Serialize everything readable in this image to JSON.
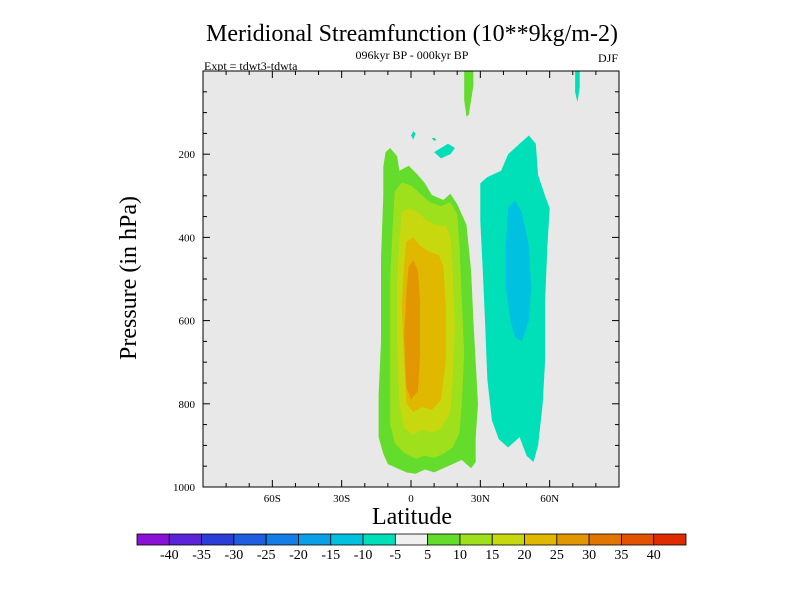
{
  "chart_data": {
    "type": "heatmap",
    "title": "Meridional Streamfunction (10**9kg/m-2)",
    "subtitle_center": "096kyr BP - 000kyr BP",
    "subtitle_left": "Expt = tdwt3-tdwta",
    "subtitle_right": "DJF",
    "xlabel": "Latitude",
    "ylabel": "Pressure (in hPa)",
    "x_range": [
      -90,
      90
    ],
    "y_range": [
      0,
      1000
    ],
    "y_inverted": true,
    "x_ticks": [
      {
        "value": -60,
        "label": "60S"
      },
      {
        "value": -30,
        "label": "30S"
      },
      {
        "value": 0,
        "label": "0"
      },
      {
        "value": 30,
        "label": "30N"
      },
      {
        "value": 60,
        "label": "60N"
      }
    ],
    "y_ticks": [
      {
        "value": 200,
        "label": "200"
      },
      {
        "value": 400,
        "label": "400"
      },
      {
        "value": 600,
        "label": "600"
      },
      {
        "value": 800,
        "label": "800"
      },
      {
        "value": 1000,
        "label": "1000"
      }
    ],
    "missing_color": "#e8e8e8",
    "colorbar": {
      "boundaries": [
        -45,
        -40,
        -35,
        -30,
        -25,
        -20,
        -15,
        -10,
        -5,
        5,
        10,
        15,
        20,
        25,
        30,
        35,
        40,
        45
      ],
      "labels": [
        "-40",
        "-35",
        "-30",
        "-25",
        "-20",
        "-15",
        "-10",
        "-5",
        "5",
        "10",
        "15",
        "20",
        "25",
        "30",
        "35",
        "40"
      ],
      "colors": [
        "#8a12d6",
        "#5b24d8",
        "#2c3ed8",
        "#1f5ee0",
        "#137ee6",
        "#0aa0e8",
        "#00c2e0",
        "#00e0b8",
        "#f0f0f0",
        "#63dc2c",
        "#9ee01c",
        "#c8d80e",
        "#e0b800",
        "#e29600",
        "#e27400",
        "#e25200",
        "#e02a00"
      ]
    },
    "features": [
      {
        "name": "positive-cell",
        "lat": [
          -12,
          28
        ],
        "p": [
          185,
          965
        ],
        "peak_lat": 0,
        "peak_p": 650,
        "level_values": [
          5,
          10,
          15,
          20,
          25
        ]
      },
      {
        "name": "negative-cell",
        "lat": [
          30,
          60
        ],
        "p": [
          155,
          940
        ],
        "peak_lat": 45,
        "peak_p": 500,
        "level_values": [
          -10,
          -15
        ]
      },
      {
        "name": "upper-positive-streak",
        "lat": [
          23,
          27
        ],
        "p": [
          0,
          110
        ],
        "level_values": [
          5
        ]
      },
      {
        "name": "upper-negative-streak",
        "lat": [
          71,
          73
        ],
        "p": [
          0,
          75
        ],
        "level_values": [
          -10
        ]
      }
    ]
  }
}
